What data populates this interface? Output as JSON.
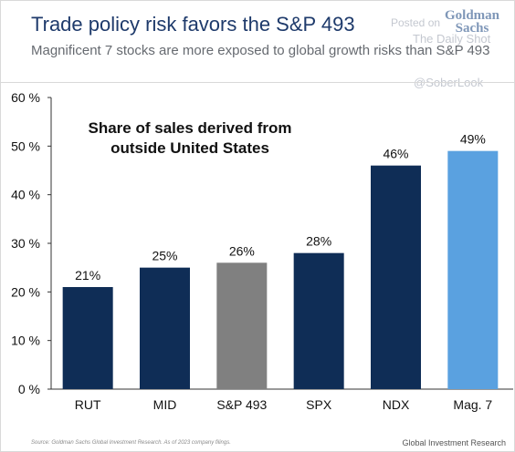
{
  "header": {
    "title": "Trade policy risk favors the S&P 493",
    "subtitle": "Magnificent 7 stocks are more exposed to global growth risks than S&P 493",
    "brand_line1": "Goldman",
    "brand_line2": "Sachs"
  },
  "watermark": {
    "posted_on": "Posted on",
    "source": "The Daily Shot",
    "handle": "@SoberLook"
  },
  "chart_data": {
    "type": "bar",
    "title": "Share of sales derived from outside United States",
    "title_lines": [
      "Share of sales derived from",
      "outside United States"
    ],
    "categories": [
      "RUT",
      "MID",
      "S&P 493",
      "SPX",
      "NDX",
      "Mag. 7"
    ],
    "values": [
      21,
      25,
      26,
      28,
      46,
      49
    ],
    "data_labels": [
      "21%",
      "25%",
      "26%",
      "28%",
      "46%",
      "49%"
    ],
    "colors": [
      "#0f2d56",
      "#0f2d56",
      "#808080",
      "#0f2d56",
      "#0f2d56",
      "#5aa1e0"
    ],
    "ylim": [
      0,
      60
    ],
    "yticks": [
      0,
      10,
      20,
      30,
      40,
      50,
      60
    ],
    "ytick_labels": [
      "0 %",
      "10 %",
      "20 %",
      "30 %",
      "40 %",
      "50 %",
      "60 %"
    ],
    "grid": false,
    "xlabel": "",
    "ylabel": ""
  },
  "footer": {
    "source_note": "Source: Goldman Sachs Global Investment Research. As of 2023 company filings.",
    "brand": "Global Investment Research"
  }
}
